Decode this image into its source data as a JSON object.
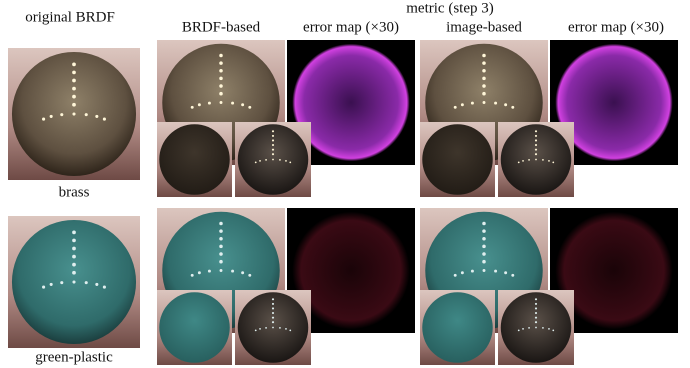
{
  "left_title": "original BRDF",
  "metric_title": "metric (step 3)",
  "columns": [
    "BRDF-based",
    "error map (×30)",
    "image-based",
    "error map (×30)"
  ],
  "rows": [
    {
      "label": "brass"
    },
    {
      "label": "green-plastic"
    }
  ]
}
